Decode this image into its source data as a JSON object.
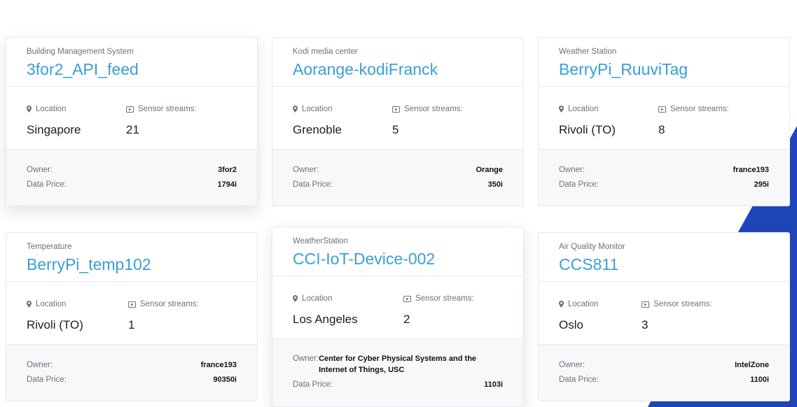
{
  "labels": {
    "location": "Location",
    "sensor_streams": "Sensor streams:",
    "owner": "Owner:",
    "data_price": "Data Price:"
  },
  "colors": {
    "title": "#3a9fd6",
    "accent_shape": "#1e44b8",
    "footer_bg": "#f6f8fa"
  },
  "cards": [
    {
      "category": "Building Management System",
      "title": "3for2_API_feed",
      "location": "Singapore",
      "streams": "21",
      "owner": "3for2",
      "price": "1794i"
    },
    {
      "category": "Kodi media center",
      "title": "Aorange-kodiFranck",
      "location": "Grenoble",
      "streams": "5",
      "owner": "Orange",
      "price": "350i"
    },
    {
      "category": "Weather Station",
      "title": "BerryPi_RuuviTag",
      "location": "Rivoli (TO)",
      "streams": "8",
      "owner": "france193",
      "price": "295i"
    },
    {
      "category": "Temperature",
      "title": "BerryPi_temp102",
      "location": "Rivoli (TO)",
      "streams": "1",
      "owner": "france193",
      "price": "90350i"
    },
    {
      "category": "WeatherStation",
      "title": "CCI-IoT-Device-002",
      "location": "Los Angeles",
      "streams": "2",
      "owner": "Center for Cyber Physical Systems and the Internet of Things, USC",
      "price": "1103i"
    },
    {
      "category": "Air Quality Monitor",
      "title": "CCS811",
      "location": "Oslo",
      "streams": "3",
      "owner": "IntelZone",
      "price": "1100i"
    }
  ]
}
